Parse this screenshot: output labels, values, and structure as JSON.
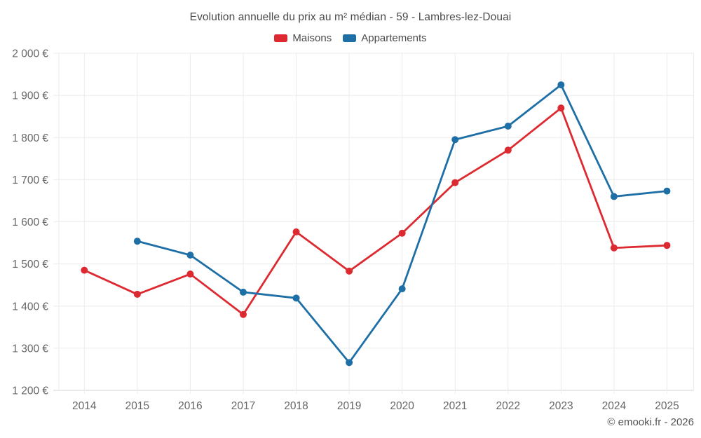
{
  "page": {
    "footer": "© emooki.fr - 2026"
  },
  "chart_data": {
    "type": "line",
    "title": "Evolution annuelle du prix au m² médian - 59 - Lambres-lez-Douai",
    "x": [
      2014,
      2015,
      2016,
      2017,
      2018,
      2019,
      2020,
      2021,
      2022,
      2023,
      2024,
      2025
    ],
    "xtick_labels": [
      "2014",
      "2015",
      "2016",
      "2017",
      "2018",
      "2019",
      "2020",
      "2021",
      "2022",
      "2023",
      "2024",
      "2025"
    ],
    "series": [
      {
        "name": "Maisons",
        "color": "#dd2a30",
        "values": [
          1485,
          1428,
          1476,
          1380,
          1576,
          1483,
          1573,
          1693,
          1770,
          1870,
          1538,
          1544
        ]
      },
      {
        "name": "Appartements",
        "color": "#1d6fa5",
        "values": [
          null,
          1554,
          1521,
          1433,
          1419,
          1266,
          1441,
          1795,
          1827,
          1925,
          1660,
          1673
        ]
      }
    ],
    "ylabel": "",
    "xlabel": "",
    "ylim": [
      1200,
      2000
    ],
    "ytick_step": 100,
    "ytick_labels": [
      "1 200 €",
      "1 300 €",
      "1 400 €",
      "1 500 €",
      "1 600 €",
      "1 700 €",
      "1 800 €",
      "1 900 €",
      "2 000 €"
    ],
    "currency_suffix": "€",
    "grid": true,
    "legend_position": "top",
    "colors": {
      "maisons": "#dd2a30",
      "appartements": "#1d6fa5",
      "gridline": "#ebebeb",
      "axis_line": "#d6d6d6",
      "tick_text": "#666666",
      "title_text": "#4b4b4b",
      "background": "#ffffff"
    }
  }
}
